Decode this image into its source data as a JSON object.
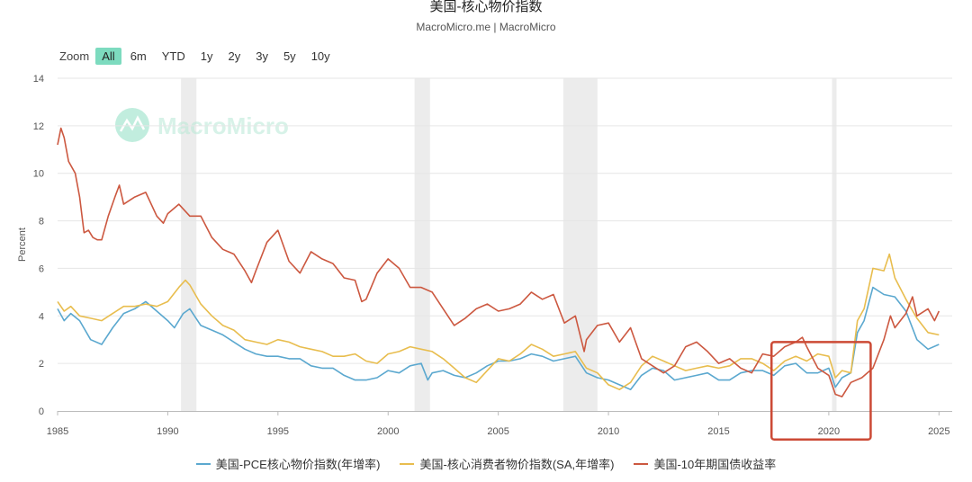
{
  "header": {
    "title": "美国-核心物价指数",
    "subtitle": "MacroMicro.me | MacroMicro"
  },
  "zoom": {
    "label": "Zoom",
    "options": [
      "All",
      "6m",
      "YTD",
      "1y",
      "2y",
      "3y",
      "5y",
      "10y"
    ],
    "active": "All"
  },
  "watermark": "MacroMicro",
  "colors": {
    "pce": "#5ba8cf",
    "cpi": "#e8bd4e",
    "yield": "#cc5840",
    "recession": "#ececec",
    "highlight": "#cc4a35",
    "grid": "#e6e6e6",
    "brand": "#7ddbbf"
  },
  "chart_data": {
    "type": "line",
    "title": "美国-核心物价指数",
    "ylabel": "Percent",
    "xlim": [
      1985,
      2025.6
    ],
    "ylim": [
      0,
      14
    ],
    "y_ticks": [
      "0",
      "2",
      "4",
      "6",
      "8",
      "10",
      "12",
      "14"
    ],
    "x_ticks": [
      "1985",
      "1990",
      "1995",
      "2000",
      "2005",
      "2010",
      "2015",
      "2020",
      "2025"
    ],
    "grid": true,
    "legend_position": "bottom",
    "recessions": [
      [
        1990.6,
        1991.3
      ],
      [
        2001.2,
        2001.9
      ],
      [
        2007.95,
        2009.5
      ],
      [
        2020.15,
        2020.35
      ]
    ],
    "highlight_box": {
      "x": [
        2017.4,
        2021.9
      ],
      "y": [
        -1.2,
        2.9
      ]
    },
    "series": [
      {
        "name": "美国-PCE核心物价指数(年增率)",
        "key": "pce",
        "x": [
          1985,
          1985.3,
          1985.6,
          1986,
          1986.5,
          1987,
          1987.5,
          1988,
          1988.5,
          1989,
          1989.5,
          1990,
          1990.3,
          1990.7,
          1991,
          1991.5,
          1992,
          1992.5,
          1993,
          1993.5,
          1994,
          1994.5,
          1995,
          1995.5,
          1996,
          1996.5,
          1997,
          1997.5,
          1998,
          1998.5,
          1999,
          1999.5,
          2000,
          2000.5,
          2001,
          2001.5,
          2001.8,
          2002,
          2002.5,
          2003,
          2003.5,
          2004,
          2004.5,
          2005,
          2005.5,
          2006,
          2006.5,
          2007,
          2007.5,
          2008,
          2008.5,
          2009,
          2009.5,
          2010,
          2010.5,
          2011,
          2011.5,
          2012,
          2012.5,
          2013,
          2013.5,
          2014,
          2014.5,
          2015,
          2015.5,
          2016,
          2016.5,
          2017,
          2017.5,
          2018,
          2018.5,
          2019,
          2019.5,
          2020,
          2020.3,
          2020.6,
          2021,
          2021.3,
          2021.6,
          2022,
          2022.5,
          2023,
          2023.5,
          2024,
          2024.5,
          2025
        ],
        "values": [
          4.3,
          3.8,
          4.1,
          3.8,
          3.0,
          2.8,
          3.5,
          4.1,
          4.3,
          4.6,
          4.2,
          3.8,
          3.5,
          4.1,
          4.3,
          3.6,
          3.4,
          3.2,
          2.9,
          2.6,
          2.4,
          2.3,
          2.3,
          2.2,
          2.2,
          1.9,
          1.8,
          1.8,
          1.5,
          1.3,
          1.3,
          1.4,
          1.7,
          1.6,
          1.9,
          2.0,
          1.3,
          1.6,
          1.7,
          1.5,
          1.4,
          1.6,
          1.9,
          2.1,
          2.1,
          2.2,
          2.4,
          2.3,
          2.1,
          2.2,
          2.3,
          1.6,
          1.4,
          1.3,
          1.1,
          0.9,
          1.5,
          1.8,
          1.7,
          1.3,
          1.4,
          1.5,
          1.6,
          1.3,
          1.3,
          1.6,
          1.7,
          1.7,
          1.5,
          1.9,
          2.0,
          1.6,
          1.6,
          1.8,
          1.0,
          1.4,
          1.6,
          3.3,
          3.8,
          5.2,
          4.9,
          4.8,
          4.2,
          3.0,
          2.6,
          2.8
        ]
      },
      {
        "name": "美国-核心消费者物价指数(SA,年增率)",
        "key": "cpi",
        "x": [
          1985,
          1985.3,
          1985.6,
          1986,
          1986.5,
          1987,
          1987.5,
          1988,
          1988.5,
          1989,
          1989.5,
          1990,
          1990.5,
          1990.8,
          1991,
          1991.5,
          1992,
          1992.5,
          1993,
          1993.5,
          1994,
          1994.5,
          1995,
          1995.5,
          1996,
          1996.5,
          1997,
          1997.5,
          1998,
          1998.5,
          1999,
          1999.5,
          2000,
          2000.5,
          2001,
          2001.5,
          2002,
          2002.5,
          2003,
          2003.5,
          2004,
          2004.5,
          2005,
          2005.5,
          2006,
          2006.5,
          2007,
          2007.5,
          2008,
          2008.5,
          2009,
          2009.5,
          2010,
          2010.5,
          2011,
          2011.5,
          2012,
          2012.5,
          2013,
          2013.5,
          2014,
          2014.5,
          2015,
          2015.5,
          2016,
          2016.5,
          2017,
          2017.5,
          2018,
          2018.5,
          2019,
          2019.5,
          2020,
          2020.3,
          2020.6,
          2021,
          2021.3,
          2021.6,
          2022,
          2022.5,
          2022.75,
          2023,
          2023.5,
          2024,
          2024.5,
          2025
        ],
        "values": [
          4.6,
          4.2,
          4.4,
          4.0,
          3.9,
          3.8,
          4.1,
          4.4,
          4.4,
          4.5,
          4.4,
          4.6,
          5.2,
          5.5,
          5.3,
          4.5,
          4.0,
          3.6,
          3.4,
          3.0,
          2.9,
          2.8,
          3.0,
          2.9,
          2.7,
          2.6,
          2.5,
          2.3,
          2.3,
          2.4,
          2.1,
          2.0,
          2.4,
          2.5,
          2.7,
          2.6,
          2.5,
          2.2,
          1.8,
          1.4,
          1.2,
          1.7,
          2.2,
          2.1,
          2.4,
          2.8,
          2.6,
          2.3,
          2.4,
          2.5,
          1.8,
          1.6,
          1.1,
          0.9,
          1.2,
          1.9,
          2.3,
          2.1,
          1.9,
          1.7,
          1.8,
          1.9,
          1.8,
          1.9,
          2.2,
          2.2,
          2.0,
          1.7,
          2.1,
          2.3,
          2.1,
          2.4,
          2.3,
          1.4,
          1.7,
          1.6,
          3.8,
          4.3,
          6.0,
          5.9,
          6.6,
          5.6,
          4.7,
          3.9,
          3.3,
          3.2
        ]
      },
      {
        "name": "美国-10年期国债收益率",
        "key": "yield",
        "x": [
          1985,
          1985.15,
          1985.3,
          1985.5,
          1985.8,
          1986,
          1986.2,
          1986.4,
          1986.6,
          1986.8,
          1987,
          1987.3,
          1987.6,
          1987.8,
          1988,
          1988.5,
          1989,
          1989.5,
          1989.8,
          1990,
          1990.5,
          1991,
          1991.5,
          1992,
          1992.5,
          1993,
          1993.5,
          1993.8,
          1994,
          1994.5,
          1995,
          1995.5,
          1996,
          1996.5,
          1997,
          1997.5,
          1998,
          1998.5,
          1998.8,
          1999,
          1999.5,
          2000,
          2000.5,
          2001,
          2001.5,
          2002,
          2002.5,
          2003,
          2003.5,
          2004,
          2004.5,
          2005,
          2005.5,
          2006,
          2006.5,
          2007,
          2007.5,
          2008,
          2008.5,
          2008.9,
          2009,
          2009.5,
          2010,
          2010.5,
          2011,
          2011.5,
          2012,
          2012.5,
          2013,
          2013.5,
          2014,
          2014.5,
          2015,
          2015.5,
          2016,
          2016.5,
          2017,
          2017.5,
          2018,
          2018.5,
          2018.8,
          2019,
          2019.5,
          2020,
          2020.3,
          2020.6,
          2021,
          2021.5,
          2022,
          2022.5,
          2022.8,
          2023,
          2023.5,
          2023.8,
          2024,
          2024.5,
          2024.8,
          2025
        ],
        "values": [
          11.2,
          11.9,
          11.5,
          10.5,
          10.0,
          9.0,
          7.5,
          7.6,
          7.3,
          7.2,
          7.2,
          8.2,
          9.0,
          9.5,
          8.7,
          9.0,
          9.2,
          8.2,
          7.9,
          8.3,
          8.7,
          8.2,
          8.2,
          7.3,
          6.8,
          6.6,
          5.9,
          5.4,
          5.9,
          7.1,
          7.6,
          6.3,
          5.8,
          6.7,
          6.4,
          6.2,
          5.6,
          5.5,
          4.6,
          4.7,
          5.8,
          6.4,
          6.0,
          5.2,
          5.2,
          5.0,
          4.3,
          3.6,
          3.9,
          4.3,
          4.5,
          4.2,
          4.3,
          4.5,
          5.0,
          4.7,
          4.9,
          3.7,
          4.0,
          2.5,
          3.0,
          3.6,
          3.7,
          2.9,
          3.5,
          2.2,
          1.9,
          1.6,
          1.9,
          2.7,
          2.9,
          2.5,
          2.0,
          2.2,
          1.8,
          1.6,
          2.4,
          2.3,
          2.7,
          2.9,
          3.1,
          2.7,
          1.8,
          1.5,
          0.7,
          0.6,
          1.2,
          1.4,
          1.8,
          3.0,
          4.0,
          3.5,
          4.1,
          4.8,
          4.0,
          4.3,
          3.8,
          4.2
        ]
      }
    ]
  }
}
